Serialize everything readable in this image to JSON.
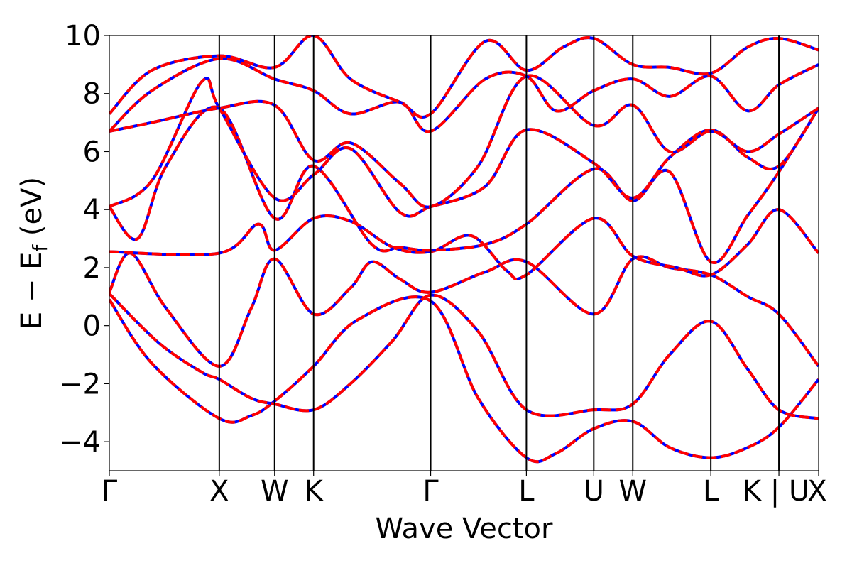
{
  "chart_data": {
    "type": "line",
    "xlabel": "Wave Vector",
    "ylabel": "E − E",
    "ylabel_sub": "f",
    "ylabel_unit": " (eV)",
    "ylim": [
      -5,
      10
    ],
    "yticks": [
      -4,
      -2,
      0,
      2,
      4,
      6,
      8,
      10
    ],
    "ytick_labels": [
      "−4",
      "−2",
      "0",
      "2",
      "4",
      "6",
      "8",
      "10"
    ],
    "xlim": [
      0,
      1
    ],
    "kpoints": [
      {
        "label": "Γ",
        "x": 0.0
      },
      {
        "label": "X",
        "x": 0.155
      },
      {
        "label": "W",
        "x": 0.233
      },
      {
        "label": "K",
        "x": 0.288
      },
      {
        "label": "Γ",
        "x": 0.453
      },
      {
        "label": "L",
        "x": 0.588
      },
      {
        "label": "U",
        "x": 0.683
      },
      {
        "label": "W",
        "x": 0.738
      },
      {
        "label": "L",
        "x": 0.848
      },
      {
        "label": "K | U",
        "x": 0.944
      },
      {
        "label": "X",
        "x": 1.0
      }
    ],
    "grid": false,
    "series": [
      {
        "style": "solid",
        "color": "#0000ff",
        "bands": "same as dashed"
      },
      {
        "style": "dashed",
        "color": "#ff0000",
        "bands": "same as solid"
      }
    ],
    "bands": [
      [
        [
          0.0,
          0.9
        ],
        [
          0.06,
          -1.3
        ],
        [
          0.155,
          -3.2
        ],
        [
          0.2,
          -3.1
        ],
        [
          0.233,
          -2.6
        ],
        [
          0.288,
          -1.4
        ],
        [
          0.35,
          0.2
        ],
        [
          0.453,
          0.85
        ],
        [
          0.52,
          -2.5
        ],
        [
          0.588,
          -4.55
        ],
        [
          0.63,
          -4.4
        ],
        [
          0.683,
          -3.55
        ],
        [
          0.738,
          -3.3
        ],
        [
          0.79,
          -4.2
        ],
        [
          0.848,
          -4.55
        ],
        [
          0.9,
          -4.2
        ],
        [
          0.944,
          -3.5
        ],
        [
          1.0,
          -1.85
        ]
      ],
      [
        [
          0.0,
          1.1
        ],
        [
          0.07,
          -0.6
        ],
        [
          0.13,
          -1.6
        ],
        [
          0.155,
          -1.85
        ],
        [
          0.2,
          -2.5
        ],
        [
          0.233,
          -2.7
        ],
        [
          0.288,
          -2.9
        ],
        [
          0.34,
          -2.0
        ],
        [
          0.4,
          -0.5
        ],
        [
          0.453,
          1.05
        ],
        [
          0.52,
          -0.2
        ],
        [
          0.588,
          -2.9
        ],
        [
          0.683,
          -2.9
        ],
        [
          0.738,
          -2.7
        ],
        [
          0.79,
          -1.0
        ],
        [
          0.848,
          0.15
        ],
        [
          0.9,
          -1.5
        ],
        [
          0.944,
          -2.9
        ],
        [
          1.0,
          -3.2
        ]
      ],
      [
        [
          0.0,
          1.15
        ],
        [
          0.03,
          2.5
        ],
        [
          0.08,
          0.6
        ],
        [
          0.155,
          -1.4
        ],
        [
          0.2,
          0.6
        ],
        [
          0.233,
          2.3
        ],
        [
          0.288,
          0.4
        ],
        [
          0.34,
          1.3
        ],
        [
          0.37,
          2.2
        ],
        [
          0.41,
          1.6
        ],
        [
          0.453,
          1.15
        ],
        [
          0.53,
          1.85
        ],
        [
          0.588,
          2.2
        ],
        [
          0.683,
          0.4
        ],
        [
          0.738,
          2.3
        ],
        [
          0.79,
          2.0
        ],
        [
          0.848,
          1.75
        ],
        [
          0.9,
          1.0
        ],
        [
          0.944,
          0.4
        ],
        [
          1.0,
          -1.4
        ]
      ],
      [
        [
          0.0,
          2.55
        ],
        [
          0.155,
          2.5
        ],
        [
          0.21,
          3.5
        ],
        [
          0.233,
          2.6
        ],
        [
          0.288,
          3.7
        ],
        [
          0.34,
          3.6
        ],
        [
          0.4,
          2.7
        ],
        [
          0.453,
          2.55
        ],
        [
          0.51,
          3.1
        ],
        [
          0.56,
          1.9
        ],
        [
          0.588,
          1.75
        ],
        [
          0.683,
          3.7
        ],
        [
          0.738,
          2.4
        ],
        [
          0.8,
          2.0
        ],
        [
          0.848,
          1.75
        ],
        [
          0.9,
          2.8
        ],
        [
          0.944,
          4.0
        ],
        [
          1.0,
          2.5
        ]
      ],
      [
        [
          0.0,
          4.1
        ],
        [
          0.04,
          3.0
        ],
        [
          0.08,
          5.5
        ],
        [
          0.155,
          7.5
        ],
        [
          0.233,
          3.7
        ],
        [
          0.288,
          5.5
        ],
        [
          0.37,
          2.8
        ],
        [
          0.41,
          2.7
        ],
        [
          0.453,
          2.6
        ],
        [
          0.53,
          2.8
        ],
        [
          0.588,
          3.5
        ],
        [
          0.683,
          5.4
        ],
        [
          0.738,
          4.3
        ],
        [
          0.79,
          5.3
        ],
        [
          0.848,
          2.2
        ],
        [
          0.9,
          3.8
        ],
        [
          0.944,
          5.3
        ],
        [
          1.0,
          7.5
        ]
      ],
      [
        [
          0.0,
          4.1
        ],
        [
          0.06,
          5.0
        ],
        [
          0.13,
          8.4
        ],
        [
          0.155,
          7.5
        ],
        [
          0.233,
          4.4
        ],
        [
          0.288,
          5.2
        ],
        [
          0.34,
          6.1
        ],
        [
          0.41,
          3.9
        ],
        [
          0.453,
          4.1
        ],
        [
          0.53,
          4.8
        ],
        [
          0.588,
          6.75
        ],
        [
          0.683,
          5.6
        ],
        [
          0.738,
          4.4
        ],
        [
          0.79,
          5.8
        ],
        [
          0.848,
          6.75
        ],
        [
          0.9,
          5.8
        ],
        [
          0.944,
          5.5
        ],
        [
          1.0,
          7.5
        ]
      ],
      [
        [
          0.0,
          6.7
        ],
        [
          0.06,
          7.0
        ],
        [
          0.155,
          7.5
        ],
        [
          0.233,
          7.6
        ],
        [
          0.288,
          5.7
        ],
        [
          0.34,
          6.3
        ],
        [
          0.41,
          4.9
        ],
        [
          0.453,
          4.1
        ],
        [
          0.52,
          5.5
        ],
        [
          0.588,
          8.6
        ],
        [
          0.683,
          6.9
        ],
        [
          0.738,
          7.6
        ],
        [
          0.79,
          6.0
        ],
        [
          0.848,
          6.7
        ],
        [
          0.9,
          6.0
        ],
        [
          0.944,
          6.6
        ],
        [
          1.0,
          7.5
        ]
      ],
      [
        [
          0.0,
          6.7
        ],
        [
          0.06,
          8.1
        ],
        [
          0.155,
          9.2
        ],
        [
          0.233,
          8.5
        ],
        [
          0.288,
          8.1
        ],
        [
          0.34,
          7.3
        ],
        [
          0.41,
          7.7
        ],
        [
          0.453,
          6.7
        ],
        [
          0.53,
          8.5
        ],
        [
          0.588,
          8.6
        ],
        [
          0.63,
          7.4
        ],
        [
          0.683,
          8.1
        ],
        [
          0.738,
          8.5
        ],
        [
          0.79,
          7.9
        ],
        [
          0.848,
          8.6
        ],
        [
          0.9,
          7.4
        ],
        [
          0.944,
          8.3
        ],
        [
          1.0,
          9.0
        ]
      ],
      [
        [
          0.0,
          7.3
        ],
        [
          0.06,
          8.8
        ],
        [
          0.155,
          9.3
        ],
        [
          0.233,
          8.9
        ],
        [
          0.288,
          10.0
        ],
        [
          0.34,
          8.5
        ],
        [
          0.41,
          7.7
        ],
        [
          0.453,
          7.3
        ],
        [
          0.53,
          9.8
        ],
        [
          0.588,
          8.8
        ],
        [
          0.64,
          9.6
        ],
        [
          0.683,
          9.9
        ],
        [
          0.738,
          9.0
        ],
        [
          0.79,
          8.9
        ],
        [
          0.848,
          8.7
        ],
        [
          0.9,
          9.6
        ],
        [
          0.944,
          9.9
        ],
        [
          1.0,
          9.5
        ]
      ]
    ]
  }
}
